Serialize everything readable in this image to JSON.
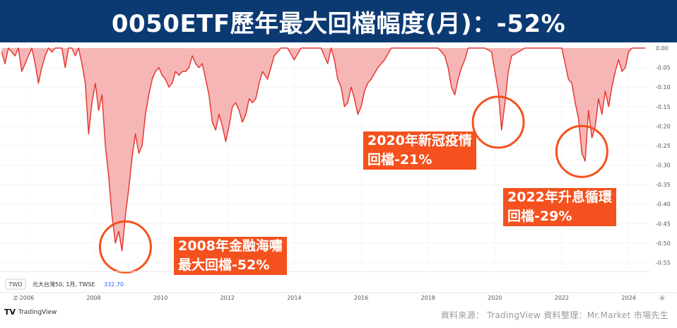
{
  "title": "0050ETF歷年最大回檔幅度(月)：-52%",
  "currency_label": "TWD",
  "legend": {
    "name": "元大台灣50, 1月, TWSE",
    "value": "332.70"
  },
  "axis_left_button": "Z",
  "axis_right_button": "A",
  "callouts": [
    {
      "line1": "2008年金融海嘯",
      "line2": "最大回檔-52%"
    },
    {
      "line1": "2020年新冠疫情",
      "line2": "回檔-21%"
    },
    {
      "line1": "2022年升息循環",
      "line2": "回檔-29%"
    }
  ],
  "tradingview_logo": "TradingView",
  "credit": "資料來源： TradingView 資料整理：Mr.Market 市場先生",
  "colors": {
    "banner": "#0b3a73",
    "line": "#e53935",
    "area": "#f7b6b6",
    "callout": "#f4511e",
    "circle": "#f4511e"
  },
  "chart_data": {
    "type": "area",
    "x_ticks": [
      "2006",
      "2008",
      "2010",
      "2012",
      "2014",
      "2016",
      "2018",
      "2020",
      "2022",
      "2024"
    ],
    "y_ticks": [
      "0.00",
      "-0.05",
      "-0.10",
      "-0.15",
      "-0.20",
      "-0.25",
      "-0.30",
      "-0.35",
      "-0.40",
      "-0.45",
      "-0.50",
      "-0.55"
    ],
    "ylim": [
      -0.56,
      0.0
    ],
    "xlim": [
      2005.2,
      2024.6
    ],
    "x": [
      2005.25,
      2005.35,
      2005.45,
      2005.55,
      2005.65,
      2005.75,
      2005.85,
      2005.95,
      2006.05,
      2006.15,
      2006.25,
      2006.35,
      2006.45,
      2006.55,
      2006.65,
      2006.75,
      2006.85,
      2006.95,
      2007.05,
      2007.15,
      2007.25,
      2007.35,
      2007.45,
      2007.55,
      2007.65,
      2007.75,
      2007.85,
      2007.95,
      2008.05,
      2008.15,
      2008.25,
      2008.35,
      2008.45,
      2008.55,
      2008.65,
      2008.75,
      2008.85,
      2008.95,
      2009.05,
      2009.15,
      2009.25,
      2009.35,
      2009.45,
      2009.55,
      2009.65,
      2009.75,
      2009.85,
      2009.95,
      2010.05,
      2010.15,
      2010.25,
      2010.35,
      2010.45,
      2010.55,
      2010.65,
      2010.75,
      2010.85,
      2010.95,
      2011.05,
      2011.15,
      2011.25,
      2011.35,
      2011.45,
      2011.55,
      2011.65,
      2011.75,
      2011.85,
      2011.95,
      2012.05,
      2012.15,
      2012.25,
      2012.35,
      2012.45,
      2012.55,
      2012.65,
      2012.75,
      2012.85,
      2012.95,
      2013.05,
      2013.2,
      2013.4,
      2013.6,
      2013.8,
      2014.0,
      2014.2,
      2014.4,
      2014.6,
      2014.8,
      2015.0,
      2015.1,
      2015.2,
      2015.3,
      2015.4,
      2015.5,
      2015.6,
      2015.7,
      2015.8,
      2015.9,
      2016.0,
      2016.1,
      2016.2,
      2016.3,
      2016.5,
      2016.7,
      2016.9,
      2017.1,
      2017.4,
      2017.7,
      2018.0,
      2018.3,
      2018.5,
      2018.6,
      2018.7,
      2018.8,
      2018.9,
      2019.0,
      2019.1,
      2019.2,
      2019.3,
      2019.5,
      2019.7,
      2019.9,
      2020.0,
      2020.1,
      2020.2,
      2020.3,
      2020.4,
      2020.5,
      2020.7,
      2020.9,
      2021.1,
      2021.3,
      2021.5,
      2021.7,
      2021.9,
      2022.0,
      2022.1,
      2022.2,
      2022.3,
      2022.4,
      2022.5,
      2022.6,
      2022.7,
      2022.8,
      2022.9,
      2023.0,
      2023.1,
      2023.2,
      2023.3,
      2023.4,
      2023.5,
      2023.6,
      2023.7,
      2023.8,
      2023.9,
      2024.0,
      2024.1,
      2024.3,
      2024.5
    ],
    "y": [
      -0.01,
      -0.04,
      0.0,
      -0.01,
      -0.02,
      0.0,
      -0.06,
      -0.04,
      -0.02,
      0.0,
      -0.04,
      -0.09,
      -0.05,
      -0.02,
      0.0,
      -0.01,
      0.0,
      0.0,
      0.0,
      -0.05,
      0.0,
      0.0,
      -0.02,
      0.0,
      -0.04,
      -0.09,
      -0.22,
      -0.14,
      -0.09,
      -0.16,
      -0.12,
      -0.25,
      -0.33,
      -0.43,
      -0.5,
      -0.47,
      -0.52,
      -0.43,
      -0.36,
      -0.28,
      -0.22,
      -0.27,
      -0.25,
      -0.17,
      -0.12,
      -0.08,
      -0.06,
      -0.05,
      -0.07,
      -0.08,
      -0.1,
      -0.09,
      -0.06,
      -0.07,
      -0.06,
      -0.06,
      -0.05,
      -0.02,
      -0.04,
      -0.05,
      -0.04,
      -0.08,
      -0.12,
      -0.19,
      -0.21,
      -0.17,
      -0.2,
      -0.24,
      -0.2,
      -0.15,
      -0.14,
      -0.16,
      -0.19,
      -0.17,
      -0.13,
      -0.14,
      -0.13,
      -0.09,
      -0.06,
      -0.08,
      -0.02,
      0.0,
      0.0,
      -0.03,
      0.0,
      0.0,
      0.0,
      0.0,
      -0.04,
      0.0,
      -0.03,
      -0.08,
      -0.1,
      -0.15,
      -0.14,
      -0.1,
      -0.13,
      -0.17,
      -0.15,
      -0.11,
      -0.09,
      -0.08,
      -0.05,
      -0.03,
      0.0,
      0.0,
      0.0,
      0.0,
      0.0,
      0.0,
      -0.02,
      -0.05,
      -0.1,
      -0.12,
      -0.08,
      -0.05,
      -0.03,
      0.0,
      0.0,
      0.0,
      0.0,
      -0.01,
      -0.06,
      -0.11,
      -0.21,
      -0.14,
      -0.06,
      -0.02,
      -0.01,
      0.0,
      0.0,
      0.0,
      0.0,
      0.0,
      0.0,
      0.0,
      -0.04,
      -0.08,
      -0.09,
      -0.14,
      -0.18,
      -0.27,
      -0.29,
      -0.16,
      -0.23,
      -0.2,
      -0.13,
      -0.17,
      -0.11,
      -0.15,
      -0.1,
      -0.06,
      -0.03,
      -0.06,
      -0.05,
      -0.01,
      0.0,
      0.0,
      0.0
    ]
  }
}
